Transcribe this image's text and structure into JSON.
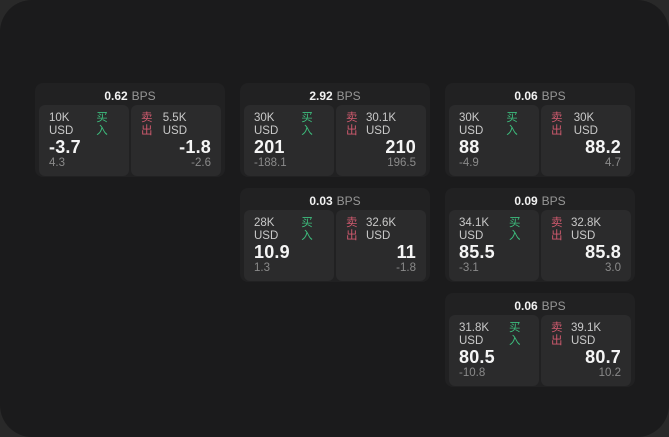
{
  "labels": {
    "bps_unit": "BPS",
    "buy": "买入",
    "sell": "卖出"
  },
  "colors": {
    "buy": "#3dbd7d",
    "sell": "#cf5a6e",
    "background": "#1b1b1c",
    "card": "#212122",
    "panel": "#2b2b2c"
  },
  "cards": [
    {
      "row": 1,
      "col": 1,
      "bps": "0.62",
      "buy": {
        "amount": "10K USD",
        "value": "-3.7",
        "delta": "4.3"
      },
      "sell": {
        "amount": "5.5K USD",
        "value": "-1.8",
        "delta": "-2.6"
      }
    },
    {
      "row": 1,
      "col": 2,
      "bps": "2.92",
      "buy": {
        "amount": "30K USD",
        "value": "201",
        "delta": "-188.1"
      },
      "sell": {
        "amount": "30.1K USD",
        "value": "210",
        "delta": "196.5"
      }
    },
    {
      "row": 1,
      "col": 3,
      "bps": "0.06",
      "buy": {
        "amount": "30K USD",
        "value": "88",
        "delta": "-4.9"
      },
      "sell": {
        "amount": "30K USD",
        "value": "88.2",
        "delta": "4.7"
      }
    },
    {
      "row": 2,
      "col": 2,
      "bps": "0.03",
      "buy": {
        "amount": "28K USD",
        "value": "10.9",
        "delta": "1.3"
      },
      "sell": {
        "amount": "32.6K USD",
        "value": "11",
        "delta": "-1.8"
      }
    },
    {
      "row": 2,
      "col": 3,
      "bps": "0.09",
      "buy": {
        "amount": "34.1K USD",
        "value": "85.5",
        "delta": "-3.1"
      },
      "sell": {
        "amount": "32.8K USD",
        "value": "85.8",
        "delta": "3.0"
      }
    },
    {
      "row": 3,
      "col": 3,
      "bps": "0.06",
      "buy": {
        "amount": "31.8K USD",
        "value": "80.5",
        "delta": "-10.8"
      },
      "sell": {
        "amount": "39.1K USD",
        "value": "80.7",
        "delta": "10.2"
      }
    }
  ]
}
